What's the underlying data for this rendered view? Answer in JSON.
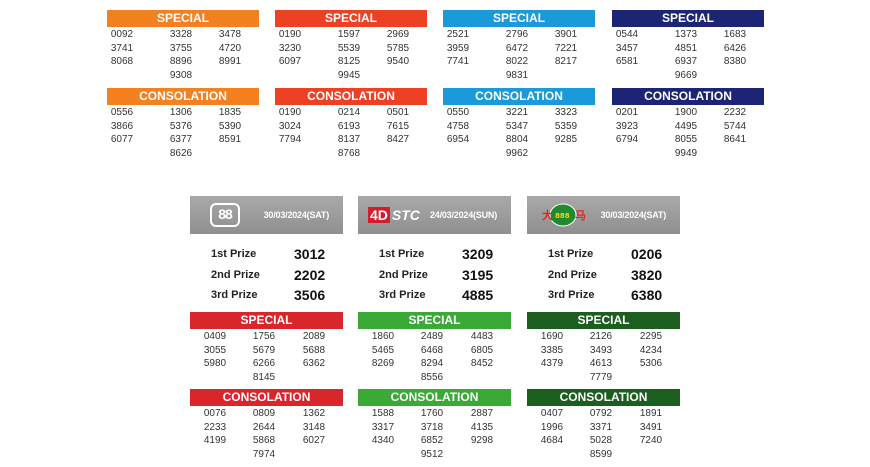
{
  "top_sections": [
    {
      "special_label": "SPECIAL",
      "special_color": "#f48120",
      "special": [
        [
          "0092",
          "3328",
          "3478"
        ],
        [
          "3741",
          "3755",
          "4720"
        ],
        [
          "8068",
          "8896",
          "8991"
        ],
        [
          "",
          "9308",
          ""
        ]
      ],
      "consolation_label": "CONSOLATION",
      "consolation_color": "#f48120",
      "consolation": [
        [
          "0556",
          "1306",
          "1835"
        ],
        [
          "3866",
          "5376",
          "5390"
        ],
        [
          "6077",
          "6377",
          "8591"
        ],
        [
          "",
          "8626",
          ""
        ]
      ]
    },
    {
      "special_label": "SPECIAL",
      "special_color": "#ee4023",
      "special": [
        [
          "0190",
          "1597",
          "2969"
        ],
        [
          "3230",
          "5539",
          "5785"
        ],
        [
          "6097",
          "8125",
          "9540"
        ],
        [
          "",
          "9945",
          ""
        ]
      ],
      "consolation_label": "CONSOLATION",
      "consolation_color": "#ee4023",
      "consolation": [
        [
          "0190",
          "0214",
          "0501"
        ],
        [
          "3024",
          "6193",
          "7615"
        ],
        [
          "7794",
          "8137",
          "8427"
        ],
        [
          "",
          "8768",
          ""
        ]
      ]
    },
    {
      "special_label": "SPECIAL",
      "special_color": "#1a9ad9",
      "special": [
        [
          "2521",
          "2796",
          "3901"
        ],
        [
          "3959",
          "6472",
          "7221"
        ],
        [
          "7741",
          "8022",
          "8217"
        ],
        [
          "",
          "9831",
          ""
        ]
      ],
      "consolation_label": "CONSOLATION",
      "consolation_color": "#1a9ad9",
      "consolation": [
        [
          "0550",
          "3221",
          "3323"
        ],
        [
          "4758",
          "5347",
          "5359"
        ],
        [
          "6954",
          "8804",
          "9285"
        ],
        [
          "",
          "9962",
          ""
        ]
      ]
    },
    {
      "special_label": "SPECIAL",
      "special_color": "#1c2575",
      "special": [
        [
          "0544",
          "1373",
          "1683"
        ],
        [
          "3457",
          "4851",
          "6426"
        ],
        [
          "6581",
          "6937",
          "8380"
        ],
        [
          "",
          "9669",
          ""
        ]
      ],
      "consolation_label": "CONSOLATION",
      "consolation_color": "#1c2575",
      "consolation": [
        [
          "0201",
          "1900",
          "2232"
        ],
        [
          "3923",
          "4495",
          "5744"
        ],
        [
          "6794",
          "8055",
          "8641"
        ],
        [
          "",
          "9949",
          ""
        ]
      ]
    }
  ],
  "bottom_sections": [
    {
      "logo": "88",
      "date": "30/03/2024(SAT)",
      "prizes": [
        {
          "label": "1st Prize",
          "value": "3012"
        },
        {
          "label": "2nd Prize",
          "value": "2202"
        },
        {
          "label": "3rd Prize",
          "value": "3506"
        }
      ],
      "special_label": "SPECIAL",
      "color": "#d9262a",
      "special": [
        [
          "0409",
          "1756",
          "2089"
        ],
        [
          "3055",
          "5679",
          "5688"
        ],
        [
          "5980",
          "6266",
          "6362"
        ],
        [
          "",
          "8145",
          ""
        ]
      ],
      "consolation_label": "CONSOLATION",
      "consolation": [
        [
          "0076",
          "0809",
          "1362"
        ],
        [
          "2233",
          "2644",
          "3148"
        ],
        [
          "4199",
          "5868",
          "6027"
        ],
        [
          "",
          "7974",
          ""
        ]
      ]
    },
    {
      "logo_4d": "4D",
      "logo_stc": "STC",
      "date": "24/03/2024(SUN)",
      "prizes": [
        {
          "label": "1st Prize",
          "value": "3209"
        },
        {
          "label": "2nd Prize",
          "value": "3195"
        },
        {
          "label": "3rd Prize",
          "value": "4885"
        }
      ],
      "special_label": "SPECIAL",
      "color": "#3aa935",
      "special": [
        [
          "1860",
          "2489",
          "4483"
        ],
        [
          "5465",
          "6468",
          "6805"
        ],
        [
          "8269",
          "8294",
          "8452"
        ],
        [
          "",
          "8556",
          ""
        ]
      ],
      "consolation_label": "CONSOLATION",
      "consolation": [
        [
          "1588",
          "1760",
          "2887"
        ],
        [
          "3317",
          "3718",
          "4135"
        ],
        [
          "4340",
          "6852",
          "9298"
        ],
        [
          "",
          "9512",
          ""
        ]
      ]
    },
    {
      "logo": "sabah-lotto-logo",
      "date": "30/03/2024(SAT)",
      "prizes": [
        {
          "label": "1st Prize",
          "value": "0206"
        },
        {
          "label": "2nd Prize",
          "value": "3820"
        },
        {
          "label": "3rd Prize",
          "value": "6380"
        }
      ],
      "special_label": "SPECIAL",
      "color": "#1b5e20",
      "special": [
        [
          "1690",
          "2126",
          "2295"
        ],
        [
          "3385",
          "3493",
          "4234"
        ],
        [
          "4379",
          "4613",
          "5306"
        ],
        [
          "",
          "7779",
          ""
        ]
      ],
      "consolation_label": "CONSOLATION",
      "consolation": [
        [
          "0407",
          "0792",
          "1891"
        ],
        [
          "1996",
          "3371",
          "3491"
        ],
        [
          "4684",
          "5028",
          "7240"
        ],
        [
          "",
          "8599",
          ""
        ]
      ]
    }
  ]
}
